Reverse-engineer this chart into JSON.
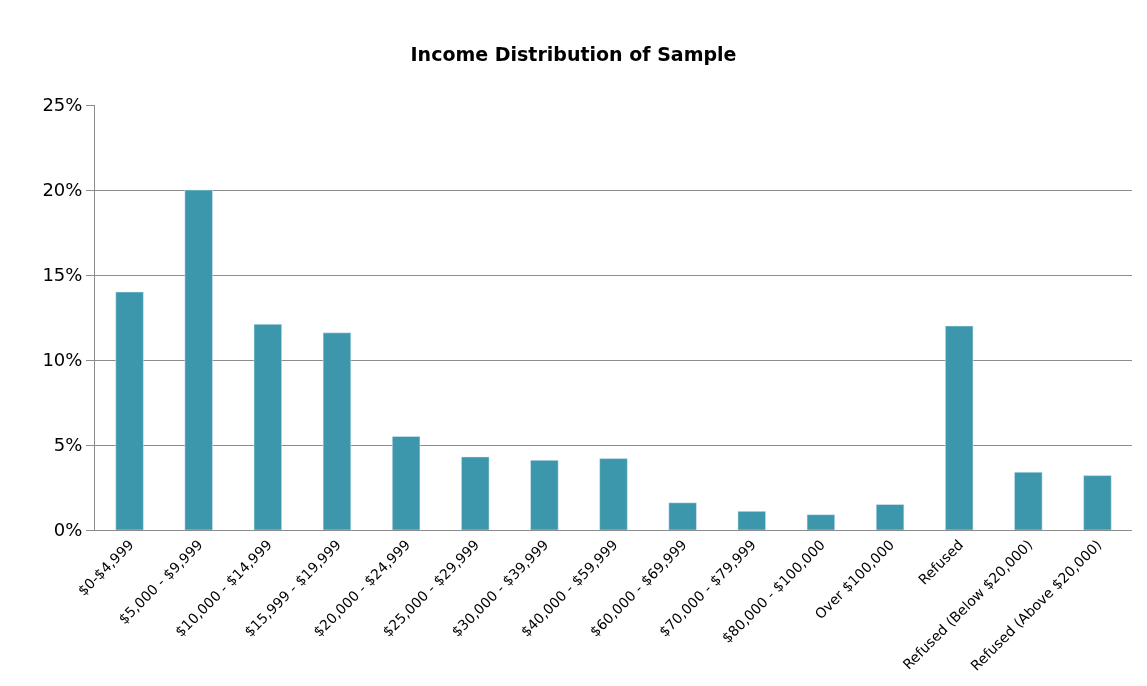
{
  "chart_data": {
    "type": "bar",
    "title": "Income Distribution of Sample",
    "categories": [
      "$0-$4,999",
      "$5,000 - $9,999",
      "$10,000 - $14,999",
      "$15,999 - $19,999",
      "$20,000 - $24,999",
      "$25,000 - $29,999",
      "$30,000 - $39,999",
      "$40,000 - $59,999",
      "$60,000 - $69,999",
      "$70,000 - $79,999",
      "$80,000 - $100,000",
      "Over $100,000",
      "Refused",
      "Refused (Below $20,000)",
      "Refused (Above $20,000)"
    ],
    "values": [
      14.0,
      20.0,
      12.1,
      11.6,
      5.5,
      4.3,
      4.1,
      4.2,
      1.6,
      1.1,
      0.9,
      1.5,
      12.0,
      3.4,
      3.2
    ],
    "color": "#3c97ad",
    "ylim": [
      0,
      25
    ],
    "yticks": [
      {
        "value": 0,
        "label": "0%"
      },
      {
        "value": 5,
        "label": "5%"
      },
      {
        "value": 10,
        "label": "10%"
      },
      {
        "value": 15,
        "label": "15%"
      },
      {
        "value": 20,
        "label": "20%"
      },
      {
        "value": 25,
        "label": "25%"
      }
    ],
    "grid": "y",
    "legend": false
  }
}
